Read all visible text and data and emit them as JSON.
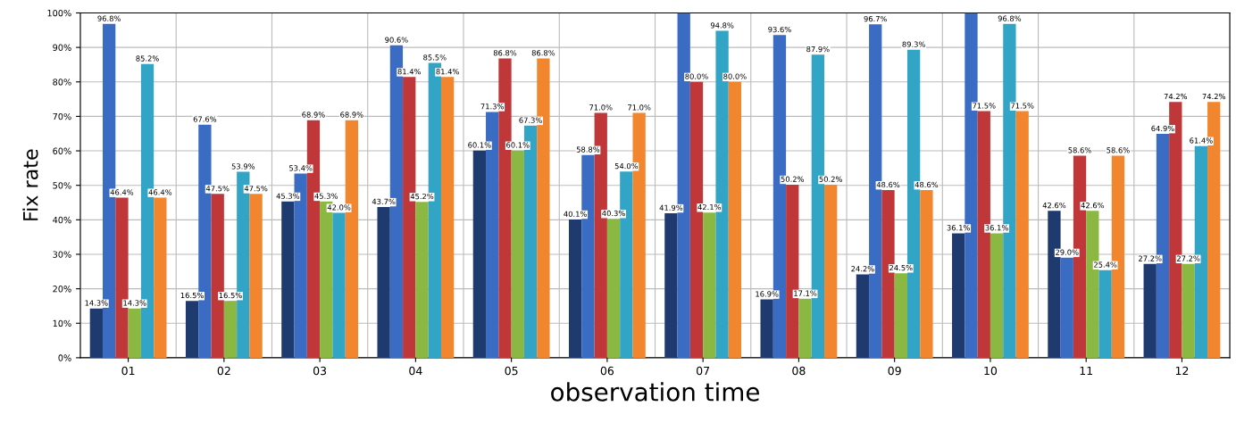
{
  "chart_data": {
    "type": "bar",
    "xlabel": "observation time",
    "ylabel": "Fix rate",
    "categories": [
      "01",
      "02",
      "03",
      "04",
      "05",
      "06",
      "07",
      "08",
      "09",
      "10",
      "11",
      "12"
    ],
    "series": [
      {
        "color": "#1f3a6e",
        "values": [
          14.3,
          16.5,
          45.3,
          43.7,
          60.1,
          40.1,
          41.9,
          16.9,
          24.2,
          36.1,
          42.6,
          27.2
        ],
        "value_labels": [
          "14.3%",
          "16.5%",
          "45.3%",
          "43.7%",
          "60.1%",
          "40.1%",
          "41.9%",
          "16.9%",
          "24.2%",
          "36.1%",
          "42.6%",
          "27.2%"
        ]
      },
      {
        "color": "#3a6cc4",
        "values": [
          96.8,
          67.6,
          53.4,
          90.6,
          71.3,
          58.8,
          100,
          93.6,
          96.7,
          100,
          29.0,
          64.9
        ],
        "value_labels": [
          "96.8%",
          "67.6%",
          "53.4%",
          "90.6%",
          "71.3%",
          "58.8%",
          null,
          "93.6%",
          "96.7%",
          null,
          "29.0%",
          "64.9%"
        ]
      },
      {
        "color": "#c0373a",
        "values": [
          46.4,
          47.5,
          68.9,
          81.4,
          86.8,
          71.0,
          80.0,
          50.2,
          48.6,
          71.5,
          58.6,
          74.2
        ],
        "value_labels": [
          "46.4%",
          "47.5%",
          "68.9%",
          "81.4%",
          "86.8%",
          "71.0%",
          "80.0%",
          "50.2%",
          "48.6%",
          "71.5%",
          "58.6%",
          "74.2%"
        ]
      },
      {
        "color": "#8ab843",
        "values": [
          14.3,
          16.5,
          45.3,
          45.2,
          60.1,
          40.3,
          42.1,
          17.1,
          24.5,
          36.1,
          42.6,
          27.2
        ],
        "value_labels": [
          "14.3%",
          "16.5%",
          "45.3%",
          "45.2%",
          "60.1%",
          "40.3%",
          "42.1%",
          "17.1%",
          "24.5%",
          "36.1%",
          "42.6%",
          "27.2%"
        ]
      },
      {
        "color": "#32a5c6",
        "values": [
          85.2,
          53.9,
          42.0,
          85.5,
          67.3,
          54.0,
          94.8,
          87.9,
          89.3,
          96.8,
          25.4,
          61.4
        ],
        "value_labels": [
          "85.2%",
          "53.9%",
          "42.0%",
          "85.5%",
          "67.3%",
          "54.0%",
          "94.8%",
          "87.9%",
          "89.3%",
          "96.8%",
          "25.4%",
          "61.4%"
        ]
      },
      {
        "color": "#f2862e",
        "values": [
          46.4,
          47.5,
          68.9,
          81.4,
          86.8,
          71.0,
          80.0,
          50.2,
          48.6,
          71.5,
          58.6,
          74.2
        ],
        "value_labels": [
          "46.4%",
          "47.5%",
          "68.9%",
          "81.4%",
          "86.8%",
          "71.0%",
          "80.0%",
          "50.2%",
          "48.6%",
          "71.5%",
          "58.6%",
          "74.2%"
        ]
      }
    ],
    "ylim": [
      0,
      100
    ],
    "yticks": [
      {
        "value": 0,
        "label": "0%"
      },
      {
        "value": 10,
        "label": "10%"
      },
      {
        "value": 20,
        "label": "20%"
      },
      {
        "value": 30,
        "label": "30%"
      },
      {
        "value": 40,
        "label": "40%"
      },
      {
        "value": 50,
        "label": "50%"
      },
      {
        "value": 60,
        "label": "60%"
      },
      {
        "value": 70,
        "label": "70%"
      },
      {
        "value": 80,
        "label": "80%"
      },
      {
        "value": 90,
        "label": "90%"
      },
      {
        "value": 100,
        "label": "100%"
      }
    ],
    "grid": true,
    "legend": false
  }
}
